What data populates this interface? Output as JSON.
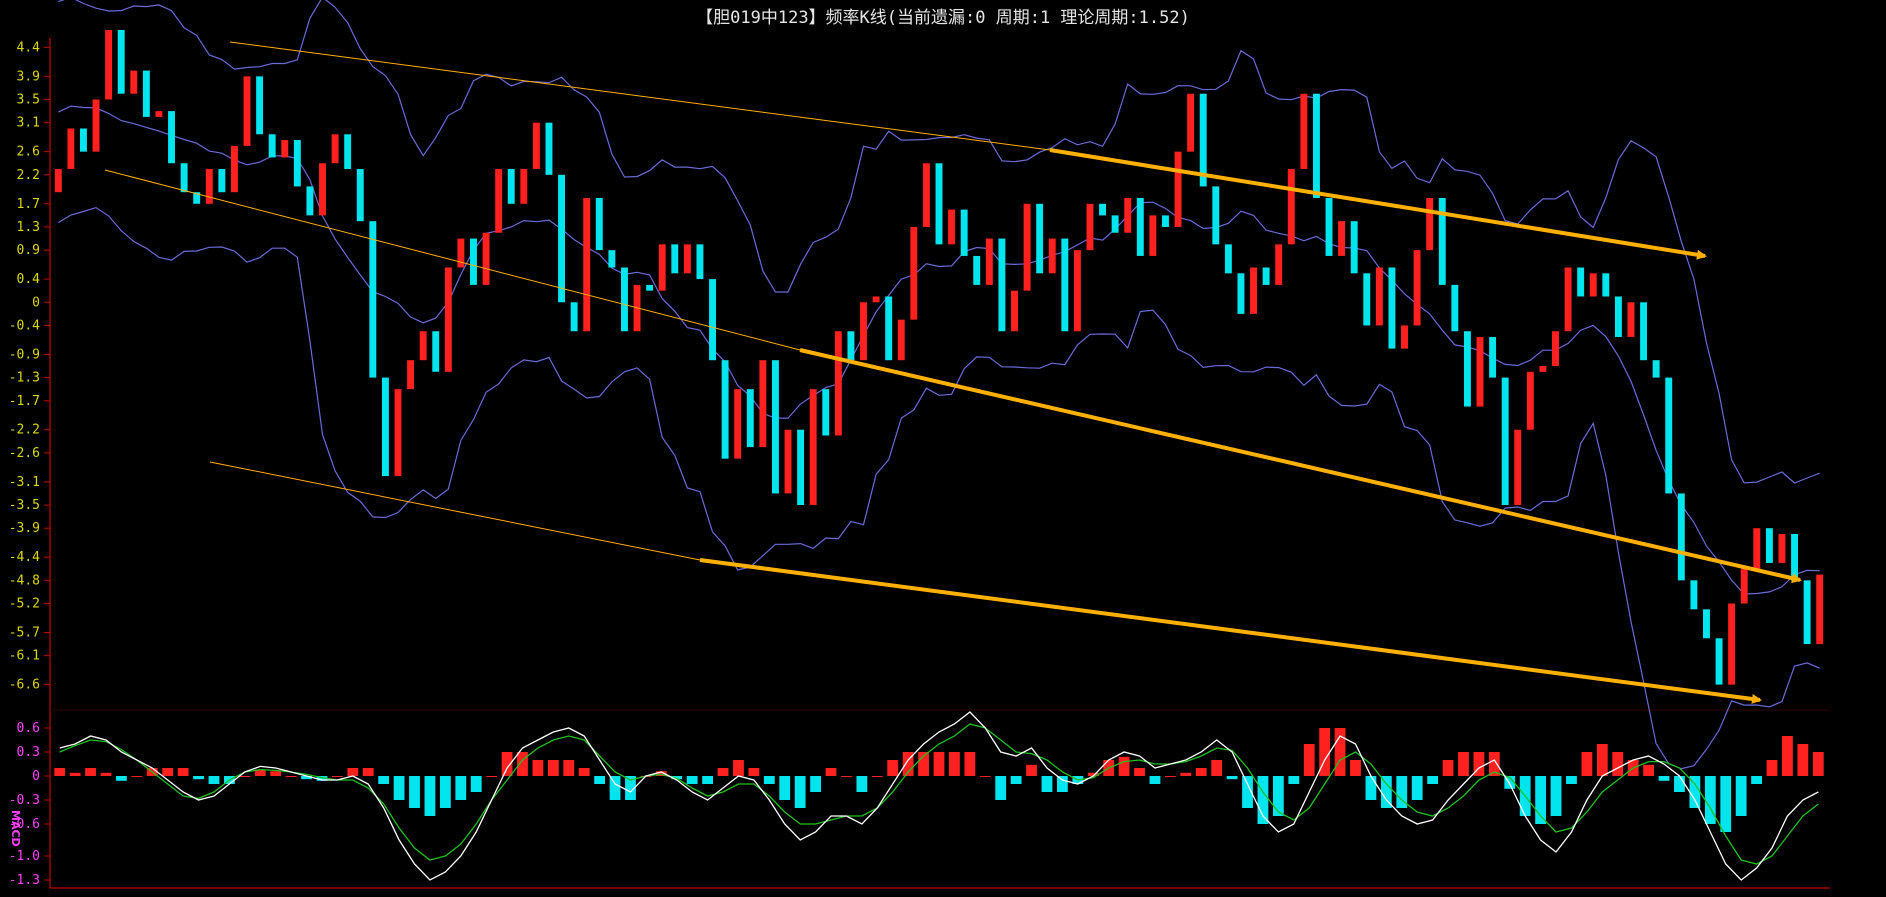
{
  "title": "【胆019中123】频率K线(当前遗漏:0 周期:1 理论周期:1.52)",
  "colors": {
    "background": "#000000",
    "axis": "#c00000",
    "up_candle": "#ff2020",
    "down_candle": "#00e5ee",
    "band": "#6a6ad8",
    "trend_arrow": "#ffb000",
    "dif_line": "#ffffff",
    "dea_line": "#20c020",
    "macd_tick": "#ff3fff",
    "price_tick": "#d9d900"
  },
  "chart_data": [
    {
      "type": "candlestick",
      "panel": "price",
      "title": "【胆019中123】频率K线(当前遗漏:0 周期:1 理论周期:1.52)",
      "ylim": [
        -6.9,
        4.7
      ],
      "y_ticks": [
        "4.4",
        "3.9",
        "3.5",
        "3.1",
        "2.6",
        "2.2",
        "1.7",
        "1.3",
        "0.9",
        "0.4",
        "0",
        "-0.4",
        "-0.9",
        "-1.3",
        "-1.7",
        "-2.2",
        "-2.6",
        "-3.1",
        "-3.5",
        "-3.9",
        "-4.4",
        "-4.8",
        "-5.2",
        "-5.7",
        "-6.1",
        "-6.6"
      ],
      "close_path": [
        2.3,
        3.0,
        2.6,
        3.5,
        4.7,
        3.6,
        4.0,
        3.2,
        3.3,
        2.4,
        1.9,
        1.7,
        2.3,
        1.9,
        2.7,
        3.9,
        2.9,
        2.5,
        2.8,
        2.0,
        1.5,
        2.4,
        2.9,
        2.3,
        1.4,
        -1.3,
        -3.0,
        -1.5,
        -1.0,
        -0.5,
        -1.2,
        0.6,
        1.1,
        0.3,
        1.2,
        2.3,
        1.7,
        2.3,
        3.1,
        2.2,
        0.0,
        -0.5,
        1.8,
        0.9,
        0.6,
        -0.5,
        0.3,
        0.2,
        1.0,
        0.5,
        1.0,
        0.4,
        -1.0,
        -2.7,
        -1.5,
        -2.5,
        -1.0,
        -3.3,
        -2.2,
        -3.5,
        -1.5,
        -2.3,
        -0.5,
        -1.0,
        0.0,
        0.1,
        -1.0,
        -0.3,
        1.3,
        2.4,
        1.0,
        1.6,
        0.8,
        0.3,
        1.1,
        -0.5,
        0.2,
        1.7,
        0.5,
        1.1,
        -0.5,
        0.9,
        1.7,
        1.5,
        1.2,
        1.8,
        0.8,
        1.5,
        1.3,
        2.6,
        3.6,
        2.0,
        1.0,
        0.5,
        -0.2,
        0.6,
        0.3,
        1.0,
        2.3,
        3.6,
        1.8,
        0.8,
        1.4,
        0.5,
        -0.4,
        0.6,
        -0.8,
        -0.4,
        0.9,
        1.8,
        0.3,
        -0.5,
        -1.8,
        -0.6,
        -1.3,
        -3.5,
        -2.2,
        -1.2,
        -1.1,
        -0.5,
        0.6,
        0.1,
        0.5,
        0.1,
        -0.6,
        0.0,
        -1.0,
        -1.3,
        -3.3,
        -4.8,
        -5.3,
        -5.8,
        -6.6,
        -5.2,
        -4.6,
        -3.9,
        -4.5,
        -4.0,
        -4.8,
        -5.9,
        -4.7
      ]
    },
    {
      "type": "macd",
      "panel": "indicator",
      "label": "MACD",
      "ylim": [
        -1.35,
        0.7
      ],
      "y_ticks": [
        "0.6",
        "0.3",
        "0",
        "-0.3",
        "-0.6",
        "-1.0",
        "-1.3"
      ],
      "dif": [
        0.35,
        0.4,
        0.5,
        0.45,
        0.3,
        0.2,
        0.1,
        -0.05,
        -0.2,
        -0.3,
        -0.25,
        -0.1,
        0.05,
        0.12,
        0.1,
        0.05,
        0.0,
        -0.05,
        -0.05,
        0.0,
        -0.1,
        -0.4,
        -0.8,
        -1.1,
        -1.3,
        -1.2,
        -1.0,
        -0.7,
        -0.3,
        0.1,
        0.35,
        0.45,
        0.55,
        0.6,
        0.5,
        0.2,
        -0.1,
        -0.2,
        0.0,
        0.05,
        -0.05,
        -0.2,
        -0.3,
        -0.15,
        0.0,
        -0.05,
        -0.3,
        -0.6,
        -0.8,
        -0.7,
        -0.5,
        -0.5,
        -0.6,
        -0.4,
        -0.1,
        0.2,
        0.4,
        0.55,
        0.65,
        0.8,
        0.6,
        0.3,
        0.25,
        0.35,
        0.1,
        -0.05,
        -0.1,
        0.0,
        0.2,
        0.3,
        0.25,
        0.1,
        0.15,
        0.2,
        0.3,
        0.45,
        0.3,
        -0.1,
        -0.5,
        -0.7,
        -0.6,
        -0.2,
        0.2,
        0.5,
        0.4,
        0.0,
        -0.3,
        -0.5,
        -0.6,
        -0.55,
        -0.3,
        -0.1,
        0.1,
        0.2,
        -0.1,
        -0.5,
        -0.8,
        -0.95,
        -0.7,
        -0.3,
        0.0,
        0.1,
        0.2,
        0.25,
        0.15,
        0.0,
        -0.3,
        -0.7,
        -1.1,
        -1.3,
        -1.15,
        -0.9,
        -0.5,
        -0.3,
        -0.2
      ],
      "dea": [
        0.3,
        0.38,
        0.45,
        0.43,
        0.33,
        0.2,
        0.05,
        -0.1,
        -0.25,
        -0.28,
        -0.2,
        -0.05,
        0.05,
        0.08,
        0.07,
        0.05,
        0.02,
        -0.02,
        -0.05,
        -0.05,
        -0.15,
        -0.35,
        -0.65,
        -0.9,
        -1.05,
        -1.0,
        -0.85,
        -0.6,
        -0.3,
        -0.05,
        0.2,
        0.35,
        0.45,
        0.5,
        0.45,
        0.25,
        0.05,
        -0.05,
        0.0,
        0.02,
        -0.03,
        -0.15,
        -0.25,
        -0.2,
        -0.1,
        -0.1,
        -0.25,
        -0.45,
        -0.6,
        -0.6,
        -0.55,
        -0.5,
        -0.5,
        -0.4,
        -0.2,
        0.05,
        0.25,
        0.4,
        0.5,
        0.65,
        0.6,
        0.45,
        0.3,
        0.28,
        0.2,
        0.05,
        -0.05,
        -0.02,
        0.1,
        0.18,
        0.2,
        0.15,
        0.15,
        0.18,
        0.25,
        0.35,
        0.32,
        0.1,
        -0.2,
        -0.45,
        -0.55,
        -0.4,
        -0.1,
        0.2,
        0.3,
        0.15,
        -0.1,
        -0.3,
        -0.45,
        -0.5,
        -0.4,
        -0.25,
        -0.05,
        0.05,
        -0.02,
        -0.25,
        -0.5,
        -0.7,
        -0.65,
        -0.45,
        -0.2,
        -0.05,
        0.1,
        0.18,
        0.18,
        0.1,
        -0.1,
        -0.4,
        -0.75,
        -1.05,
        -1.1,
        -1.0,
        -0.75,
        -0.5,
        -0.35
      ]
    }
  ]
}
